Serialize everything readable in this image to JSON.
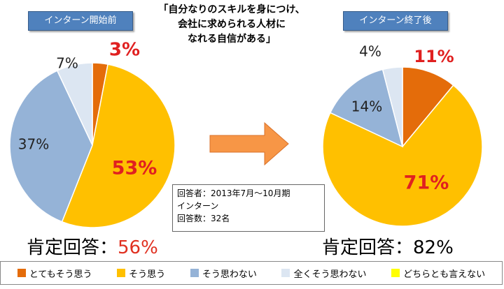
{
  "question": "「自分なりのスキルを身につけ、\n会社に求められる人材に\nなれる自信がある」",
  "respondent_info": [
    "回答者：2013年7月〜10月期",
    "インターン",
    "回答数：32名"
  ],
  "legend_items": [
    {
      "label": "とてもそう思う",
      "color": "#e46c0a"
    },
    {
      "label": "そう思う",
      "color": "#ffc000"
    },
    {
      "label": "そう思わない",
      "color": "#95b3d7"
    },
    {
      "label": "全くそう思わない",
      "color": "#dce6f2"
    },
    {
      "label": "どちらとも言えない",
      "color": "#ffff00"
    }
  ],
  "arrow_color": "#f79646",
  "chart_data": [
    {
      "type": "pie",
      "title": "インターン開始前",
      "categories": [
        "とてもそう思う",
        "そう思う",
        "そう思わない",
        "全くそう思わない",
        "どちらとも言えない"
      ],
      "values": [
        3,
        53,
        37,
        7,
        0
      ],
      "labels": [
        "3%",
        "53%",
        "37%",
        "7%",
        ""
      ],
      "summary_label": "肯定回答：",
      "summary_value": "56%"
    },
    {
      "type": "pie",
      "title": "インターン終了後",
      "categories": [
        "とてもそう思う",
        "そう思う",
        "そう思わない",
        "全くそう思わない",
        "どちらとも言えない"
      ],
      "values": [
        11,
        71,
        14,
        4,
        0
      ],
      "labels": [
        "11%",
        "71%",
        "14%",
        "4%",
        ""
      ],
      "summary_label": "肯定回答：",
      "summary_value": "82%"
    }
  ]
}
